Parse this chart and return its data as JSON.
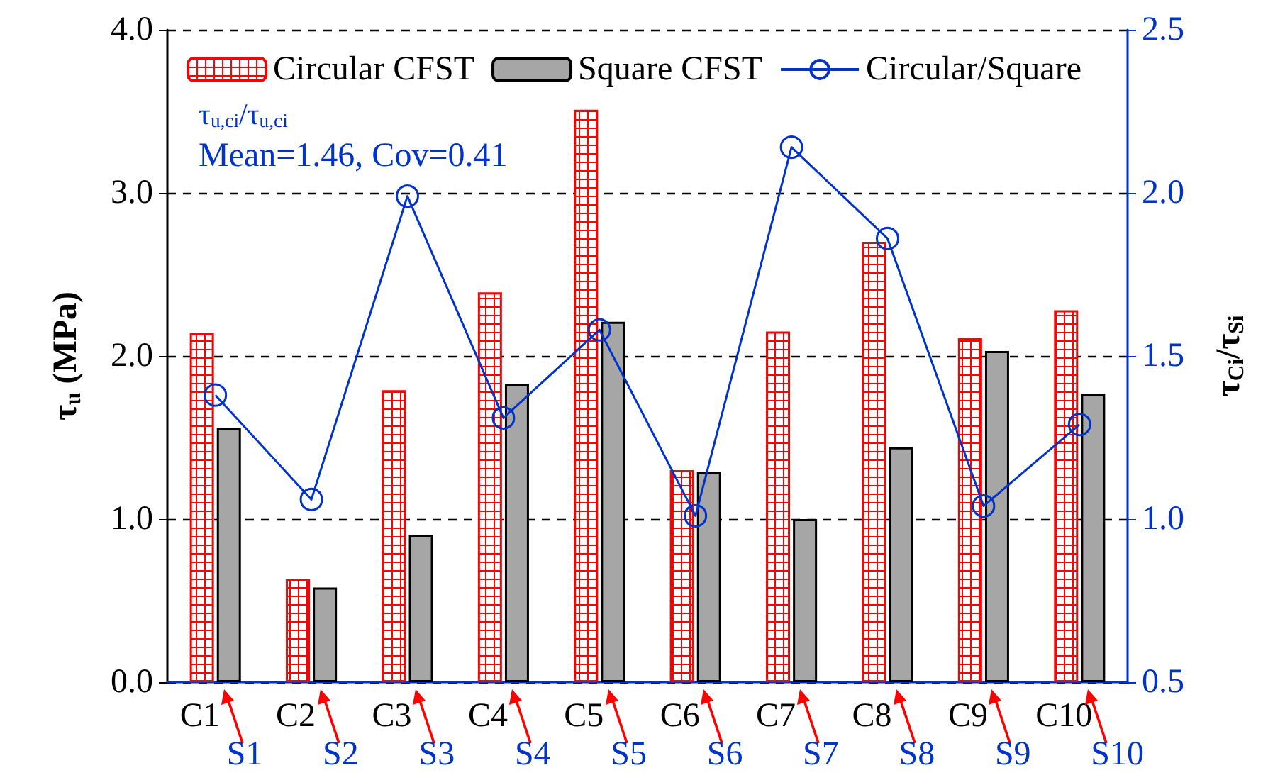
{
  "chart_data": {
    "type": "bar",
    "categories": [
      "C1",
      "C2",
      "C3",
      "C4",
      "C5",
      "C6",
      "C7",
      "C8",
      "C9",
      "C10"
    ],
    "series": [
      {
        "name": "Circular CFST",
        "color": "#ff0000",
        "values": [
          2.14,
          0.63,
          1.79,
          2.39,
          3.51,
          1.3,
          2.15,
          2.7,
          2.11,
          2.28
        ]
      },
      {
        "name": "Square CFST",
        "color": "#a6a6a6",
        "values": [
          1.56,
          0.58,
          0.9,
          1.83,
          2.21,
          1.29,
          1.0,
          1.44,
          2.03,
          1.77
        ]
      },
      {
        "name": "Circular/Square",
        "type": "line",
        "axis": "y2",
        "color": "#0033cc",
        "values": [
          1.38,
          1.06,
          1.99,
          1.31,
          1.58,
          1.01,
          2.14,
          1.86,
          1.04,
          1.29
        ]
      }
    ],
    "ylabel": "τ$_{u}$ (MPa)",
    "y2label": "τ$_{Ci}$/τ$_{Si}$",
    "ylim": [
      0,
      4
    ],
    "yticks": [
      {
        "value": 0,
        "label": "0.0"
      },
      {
        "value": 1,
        "label": "1.0"
      },
      {
        "value": 2,
        "label": "2.0"
      },
      {
        "value": 3,
        "label": "3.0"
      },
      {
        "value": 4,
        "label": "4.0"
      }
    ],
    "y2lim": [
      0.5,
      2.5
    ],
    "y2ticks": [
      0.5,
      {
        "value": 1,
        "label": "1.0"
      },
      1.5,
      {
        "value": 2,
        "label": "2.0"
      },
      2.5
    ],
    "grid": "y",
    "legend": "top",
    "marker": "circle",
    "line_style": "solid",
    "annotations": [
      "τ$_{u,ci}$/τ$_{u,ci}$",
      "Mean=1.46, Cov=0.41",
      "S1",
      "S2",
      "S3",
      "S4",
      "S5",
      "S6",
      "S7",
      "S8",
      "S9",
      "S10"
    ]
  }
}
